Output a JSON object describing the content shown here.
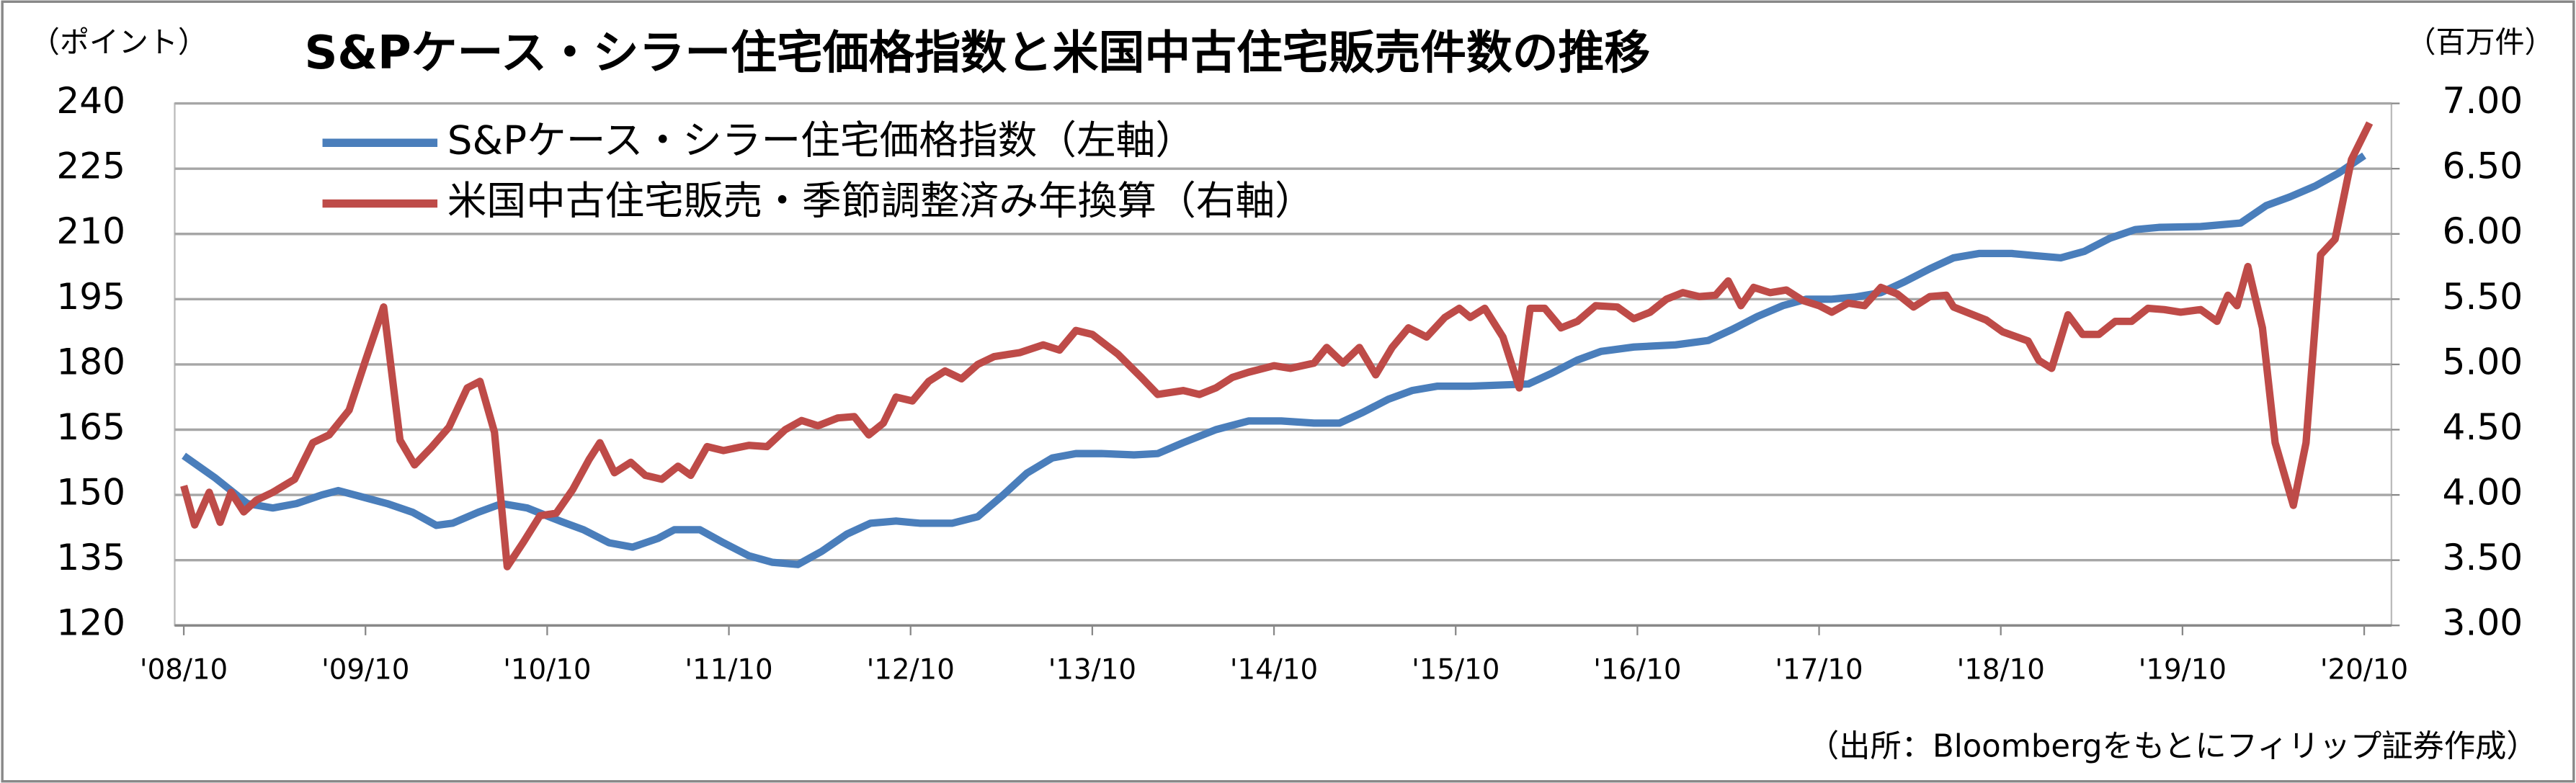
{
  "chart_data": {
    "type": "line",
    "title": "S&Pケース・シラー住宅価格指数と米国中古住宅販売件数の推移",
    "y_unit": "（ポイント）",
    "y2_unit": "（百万件）",
    "source": "（出所：Bloombergをもとにフィリップ証券作成）",
    "xlim": [
      2008.7,
      2020.9
    ],
    "xticks": [
      {
        "value": 2008.75,
        "label": "'08/10"
      },
      {
        "value": 2009.75,
        "label": "'09/10"
      },
      {
        "value": 2010.75,
        "label": "'10/10"
      },
      {
        "value": 2011.75,
        "label": "'11/10"
      },
      {
        "value": 2012.75,
        "label": "'12/10"
      },
      {
        "value": 2013.75,
        "label": "'13/10"
      },
      {
        "value": 2014.75,
        "label": "'14/10"
      },
      {
        "value": 2015.75,
        "label": "'15/10"
      },
      {
        "value": 2016.75,
        "label": "'16/10"
      },
      {
        "value": 2017.75,
        "label": "'17/10"
      },
      {
        "value": 2018.75,
        "label": "'18/10"
      },
      {
        "value": 2019.75,
        "label": "'19/10"
      },
      {
        "value": 2020.75,
        "label": "'20/10"
      }
    ],
    "ylim": [
      120,
      240
    ],
    "yticks": [
      120,
      135,
      150,
      165,
      180,
      195,
      210,
      225,
      240
    ],
    "y2lim": [
      3,
      7
    ],
    "y2ticks": [
      {
        "value": 3,
        "label": "3.00"
      },
      {
        "value": 3.5,
        "label": "3.50"
      },
      {
        "value": 4,
        "label": "4.00"
      },
      {
        "value": 4.5,
        "label": "4.50"
      },
      {
        "value": 5,
        "label": "5.00"
      },
      {
        "value": 5.5,
        "label": "5.50"
      },
      {
        "value": 6,
        "label": "6.00"
      },
      {
        "value": 6.5,
        "label": "6.50"
      },
      {
        "value": 7,
        "label": "7.00"
      }
    ],
    "grid": true,
    "series": [
      {
        "name": "S&Pケース・シラー住宅価格指数（左軸）",
        "color": "#4a7ebb",
        "x": [
          2008.75,
          2008.92,
          2009.1,
          2009.24,
          2009.37,
          2009.51,
          2009.6,
          2009.69,
          2009.87,
          2010.01,
          2010.14,
          2010.23,
          2010.37,
          2010.5,
          2010.64,
          2010.82,
          2010.95,
          2011.09,
          2011.22,
          2011.36,
          2011.45,
          2011.59,
          2011.72,
          2011.86,
          2011.99,
          2012.13,
          2012.26,
          2012.4,
          2012.53,
          2012.67,
          2012.8,
          2012.98,
          2013.12,
          2013.26,
          2013.39,
          2013.53,
          2013.66,
          2013.8,
          2013.98,
          2014.11,
          2014.25,
          2014.43,
          2014.61,
          2014.79,
          2014.97,
          2015.11,
          2015.24,
          2015.38,
          2015.51,
          2015.65,
          2015.83,
          2016.15,
          2016.28,
          2016.42,
          2016.55,
          2016.73,
          2016.96,
          2017.14,
          2017.27,
          2017.41,
          2017.55,
          2017.68,
          2017.82,
          2017.95,
          2018.09,
          2018.22,
          2018.36,
          2018.49,
          2018.63,
          2018.81,
          2018.94,
          2019.08,
          2019.21,
          2019.35,
          2019.49,
          2019.62,
          2019.85,
          2020.07,
          2020.21,
          2020.34,
          2020.48,
          2020.61,
          2020.75
        ],
        "values": [
          159,
          154,
          148,
          147,
          148,
          150,
          151,
          150,
          148,
          146,
          143,
          143.5,
          146,
          148,
          147,
          144,
          142,
          139,
          138,
          140,
          142,
          142,
          139,
          136,
          134.5,
          134,
          137,
          141,
          143.5,
          144,
          143.5,
          143.5,
          145,
          150,
          155,
          158.5,
          159.5,
          159.5,
          159.2,
          159.5,
          162,
          165,
          167,
          167,
          166.5,
          166.5,
          169,
          172,
          174,
          175,
          175,
          175.5,
          178,
          181,
          183,
          184,
          184.5,
          185.5,
          188,
          191,
          193.5,
          195,
          195,
          195.5,
          196.5,
          199,
          202,
          204.5,
          205.5,
          205.5,
          205,
          204.5,
          206,
          209,
          211,
          211.5,
          211.7,
          212.5,
          216.5,
          218.5,
          221,
          224,
          228
        ]
      },
      {
        "name": "米国中古住宅販売・季節調整済み年換算（右軸）",
        "color": "#be4b48",
        "axis": "y2",
        "x": [
          2008.75,
          2008.81,
          2008.89,
          2008.95,
          2009.01,
          2009.08,
          2009.15,
          2009.24,
          2009.36,
          2009.46,
          2009.55,
          2009.66,
          2009.75,
          2009.85,
          2009.94,
          2010.02,
          2010.11,
          2010.21,
          2010.31,
          2010.38,
          2010.46,
          2010.53,
          2010.62,
          2010.71,
          2010.8,
          2010.89,
          2010.98,
          2011.04,
          2011.12,
          2011.21,
          2011.29,
          2011.38,
          2011.47,
          2011.54,
          2011.63,
          2011.72,
          2011.86,
          2011.96,
          2012.06,
          2012.15,
          2012.24,
          2012.35,
          2012.44,
          2012.52,
          2012.6,
          2012.67,
          2012.76,
          2012.85,
          2012.94,
          2013.03,
          2013.12,
          2013.21,
          2013.35,
          2013.48,
          2013.57,
          2013.66,
          2013.75,
          2013.89,
          2014.02,
          2014.11,
          2014.25,
          2014.34,
          2014.43,
          2014.52,
          2014.61,
          2014.75,
          2014.84,
          2014.97,
          2015.04,
          2015.13,
          2015.22,
          2015.31,
          2015.4,
          2015.49,
          2015.59,
          2015.69,
          2015.77,
          2015.83,
          2015.91,
          2016.01,
          2016.1,
          2016.16,
          2016.24,
          2016.33,
          2016.42,
          2016.52,
          2016.64,
          2016.73,
          2016.82,
          2016.91,
          2017.0,
          2017.09,
          2017.18,
          2017.25,
          2017.32,
          2017.39,
          2017.48,
          2017.57,
          2017.66,
          2017.75,
          2017.82,
          2017.91,
          2018.0,
          2018.09,
          2018.18,
          2018.27,
          2018.36,
          2018.45,
          2018.49,
          2018.58,
          2018.67,
          2018.76,
          2018.9,
          2018.96,
          2019.03,
          2019.12,
          2019.2,
          2019.29,
          2019.38,
          2019.47,
          2019.56,
          2019.65,
          2019.74,
          2019.85,
          2019.94,
          2020.0,
          2020.05,
          2020.11,
          2020.19,
          2020.26,
          2020.36,
          2020.43,
          2020.51,
          2020.59,
          2020.68,
          2020.78
        ],
        "values": [
          4.07,
          3.77,
          4.02,
          3.79,
          4.02,
          3.87,
          3.96,
          4.02,
          4.12,
          4.4,
          4.46,
          4.65,
          5.03,
          5.44,
          4.42,
          4.23,
          4.36,
          4.52,
          4.82,
          4.87,
          4.48,
          3.45,
          3.64,
          3.84,
          3.86,
          4.04,
          4.27,
          4.4,
          4.17,
          4.25,
          4.15,
          4.12,
          4.22,
          4.15,
          4.37,
          4.34,
          4.38,
          4.37,
          4.5,
          4.57,
          4.53,
          4.59,
          4.6,
          4.46,
          4.55,
          4.75,
          4.72,
          4.87,
          4.95,
          4.89,
          5.0,
          5.06,
          5.09,
          5.15,
          5.11,
          5.26,
          5.23,
          5.08,
          4.9,
          4.77,
          4.8,
          4.77,
          4.82,
          4.9,
          4.94,
          4.99,
          4.97,
          5.01,
          5.13,
          5.01,
          5.13,
          4.92,
          5.13,
          5.28,
          5.21,
          5.36,
          5.43,
          5.36,
          5.43,
          5.21,
          4.82,
          5.43,
          5.43,
          5.28,
          5.33,
          5.45,
          5.44,
          5.35,
          5.4,
          5.5,
          5.55,
          5.52,
          5.53,
          5.64,
          5.45,
          5.59,
          5.55,
          5.57,
          5.49,
          5.45,
          5.4,
          5.47,
          5.45,
          5.59,
          5.54,
          5.44,
          5.52,
          5.53,
          5.44,
          5.39,
          5.34,
          5.25,
          5.18,
          5.03,
          4.97,
          5.38,
          5.23,
          5.23,
          5.33,
          5.33,
          5.43,
          5.42,
          5.4,
          5.42,
          5.33,
          5.53,
          5.45,
          5.75,
          5.28,
          4.4,
          3.92,
          4.4,
          5.84,
          5.96,
          6.57,
          6.85
        ]
      }
    ]
  }
}
